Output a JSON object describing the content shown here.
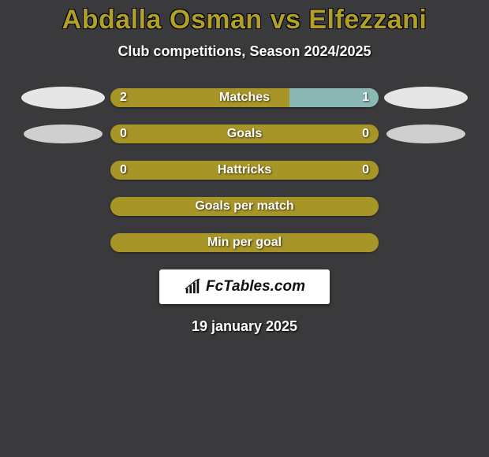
{
  "title": "Abdalla Osman vs Elfezzani",
  "subtitle": "Club competitions, Season 2024/2025",
  "date": "19 january 2025",
  "logo_text": "FcTables.com",
  "colors": {
    "background": "#3a3a3c",
    "title_color": "#b0a02a",
    "text_color": "#ffffff",
    "bar_primary": "#a79528",
    "bar_accent": "#8bb8b4",
    "ellipse_big": "#e6e6e6",
    "ellipse_small": "#cfcfcf",
    "logo_bg": "#ffffff",
    "logo_text": "#111111"
  },
  "stats": [
    {
      "label": "Matches",
      "left_val": "2",
      "right_val": "1",
      "left_pct": 66.7,
      "right_pct": 33.3,
      "left_color": "#a79528",
      "right_color": "#8bb8b4",
      "show_left_ellipse": "big",
      "show_right_ellipse": "big"
    },
    {
      "label": "Goals",
      "left_val": "0",
      "right_val": "0",
      "left_pct": 50,
      "right_pct": 50,
      "left_color": "#a79528",
      "right_color": "#a79528",
      "show_left_ellipse": "small",
      "show_right_ellipse": "small"
    },
    {
      "label": "Hattricks",
      "left_val": "0",
      "right_val": "0",
      "left_pct": 50,
      "right_pct": 50,
      "left_color": "#a79528",
      "right_color": "#a79528",
      "show_left_ellipse": "",
      "show_right_ellipse": ""
    },
    {
      "label": "Goals per match",
      "left_val": "",
      "right_val": "",
      "left_pct": 100,
      "right_pct": 0,
      "left_color": "#a79528",
      "right_color": "#a79528",
      "show_left_ellipse": "",
      "show_right_ellipse": ""
    },
    {
      "label": "Min per goal",
      "left_val": "",
      "right_val": "",
      "left_pct": 100,
      "right_pct": 0,
      "left_color": "#a79528",
      "right_color": "#a79528",
      "show_left_ellipse": "",
      "show_right_ellipse": ""
    }
  ]
}
